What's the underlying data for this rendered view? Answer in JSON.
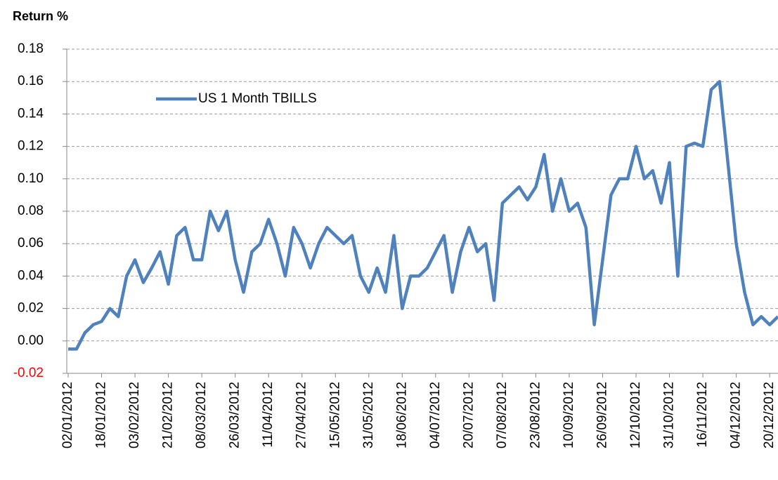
{
  "chart_data": {
    "type": "line",
    "y_axis_label": "Return %",
    "categories": [
      "02/01/2012",
      null,
      null,
      null,
      "18/01/2012",
      null,
      null,
      null,
      "03/02/2012",
      null,
      null,
      null,
      "21/02/2012",
      null,
      null,
      null,
      "08/03/2012",
      null,
      null,
      null,
      "26/03/2012",
      null,
      null,
      null,
      "11/04/2012",
      null,
      null,
      null,
      "27/04/2012",
      null,
      null,
      null,
      "15/05/2012",
      null,
      null,
      null,
      "31/05/2012",
      null,
      null,
      null,
      "18/06/2012",
      null,
      null,
      null,
      "04/07/2012",
      null,
      null,
      null,
      "20/07/2012",
      null,
      null,
      null,
      "07/08/2012",
      null,
      null,
      null,
      "23/08/2012",
      null,
      null,
      null,
      "10/09/2012",
      null,
      null,
      null,
      "26/09/2012",
      null,
      null,
      null,
      "12/10/2012",
      null,
      null,
      null,
      "31/10/2012",
      null,
      null,
      null,
      "16/11/2012",
      null,
      null,
      null,
      "04/12/2012",
      null,
      null,
      null,
      "20/12/2012",
      null
    ],
    "series": [
      {
        "name": "US 1 Month TBILLS",
        "color": "#4f81bd",
        "values": [
          -0.005,
          -0.005,
          0.005,
          0.01,
          0.012,
          0.02,
          0.015,
          0.04,
          0.05,
          0.036,
          0.045,
          0.055,
          0.035,
          0.065,
          0.07,
          0.05,
          0.05,
          0.08,
          0.068,
          0.08,
          0.05,
          0.03,
          0.055,
          0.06,
          0.075,
          0.06,
          0.04,
          0.07,
          0.06,
          0.045,
          0.06,
          0.07,
          0.065,
          0.06,
          0.065,
          0.04,
          0.03,
          0.045,
          0.03,
          0.065,
          0.02,
          0.04,
          0.04,
          0.045,
          0.055,
          0.065,
          0.03,
          0.055,
          0.07,
          0.055,
          0.06,
          0.025,
          0.085,
          0.09,
          0.095,
          0.087,
          0.095,
          0.115,
          0.08,
          0.1,
          0.08,
          0.085,
          0.07,
          0.01,
          0.05,
          0.09,
          0.1,
          0.1,
          0.12,
          0.1,
          0.105,
          0.085,
          0.11,
          0.04,
          0.12,
          0.122,
          0.12,
          0.155,
          0.16,
          0.11,
          0.06,
          0.03,
          0.01,
          0.015,
          0.01,
          0.015
        ]
      }
    ],
    "ylim": [
      -0.02,
      0.18
    ],
    "yticks": [
      {
        "value": -0.02,
        "label": "-0.02"
      },
      {
        "value": 0,
        "label": "0.00"
      },
      {
        "value": 0.02,
        "label": "0.02"
      },
      {
        "value": 0.04,
        "label": "0.04"
      },
      {
        "value": 0.06,
        "label": "0.06"
      },
      {
        "value": 0.08,
        "label": "0.08"
      },
      {
        "value": 0.1,
        "label": "0.10"
      },
      {
        "value": 0.12,
        "label": "0.12"
      },
      {
        "value": 0.14,
        "label": "0.14"
      },
      {
        "value": 0.16,
        "label": "0.16"
      },
      {
        "value": 0.18,
        "label": "0.18"
      }
    ],
    "grid": true,
    "negative_label_color": "#ff0000",
    "legend": "upper left"
  }
}
